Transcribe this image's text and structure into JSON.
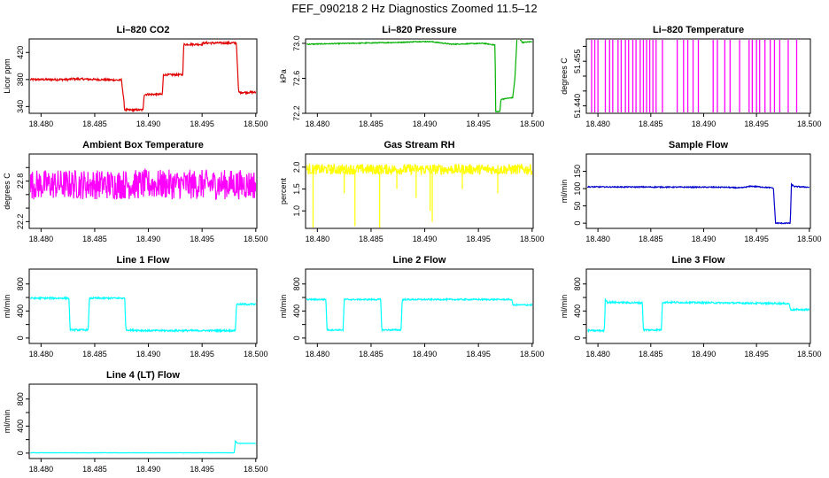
{
  "page_title": "FEF_090218  2 Hz Diagnostics Zoomed 11.5–12",
  "colors": {
    "red": "#e00000",
    "green": "#00b000",
    "magenta": "#ff00ff",
    "yellow": "#ffff00",
    "blue": "#0000cc",
    "cyan": "#00ffff"
  },
  "chart_data": [
    {
      "type": "line",
      "title": "Li–820 CO2",
      "ylabel": "Licor ppm",
      "xlabel": "",
      "xlim": [
        18.4789,
        18.5001
      ],
      "ylim": [
        330,
        440
      ],
      "xticks": [
        18.48,
        18.485,
        18.49,
        18.495,
        18.5
      ],
      "xticklabels": [
        "18.480",
        "18.485",
        "18.490",
        "18.495",
        "18.500"
      ],
      "yticks": [
        340,
        380,
        420
      ],
      "yticklabels": [
        "340",
        "380",
        "420"
      ],
      "color": "#e00000",
      "noise": 1.5,
      "series": [
        {
          "x": [
            18.479,
            18.4825,
            18.483,
            18.4875,
            18.4878,
            18.4895,
            18.4896,
            18.4913,
            18.4914,
            18.4932,
            18.4933,
            18.495,
            18.4951,
            18.4982,
            18.4984,
            18.5
          ],
          "values": [
            380,
            380,
            381,
            379,
            335,
            335,
            358,
            358,
            387,
            387,
            432,
            432,
            434,
            434,
            361,
            361
          ]
        }
      ]
    },
    {
      "type": "line",
      "title": "Li–820 Pressure",
      "ylabel": "kPa",
      "xlabel": "",
      "xlim": [
        18.4789,
        18.5001
      ],
      "ylim": [
        72.2,
        73.05
      ],
      "xticks": [
        18.48,
        18.485,
        18.49,
        18.495,
        18.5
      ],
      "xticklabels": [
        "18.480",
        "18.485",
        "18.490",
        "18.495",
        "18.500"
      ],
      "yticks": [
        72.2,
        72.6,
        73.0
      ],
      "yticklabels": [
        "72.2",
        "72.6",
        "73.0"
      ],
      "color": "#00b000",
      "noise": 0.005,
      "series": [
        {
          "x": [
            18.479,
            18.483,
            18.4875,
            18.4895,
            18.4905,
            18.4925,
            18.4955,
            18.49655,
            18.4966,
            18.497,
            18.4971,
            18.4982,
            18.4984,
            18.4986,
            18.4991,
            18.5
          ],
          "values": [
            72.99,
            73.0,
            73.01,
            73.02,
            73.02,
            72.99,
            73.0,
            72.98,
            72.22,
            72.22,
            72.36,
            72.38,
            72.6,
            73.09,
            73.01,
            73.02
          ]
        }
      ]
    },
    {
      "type": "line",
      "title": "Li–820 Temperature",
      "ylabel": "degrees C",
      "xlabel": "",
      "xlim": [
        18.4789,
        18.5001
      ],
      "ylim": [
        51.4375,
        51.4625
      ],
      "xticks": [
        18.48,
        18.485,
        18.49,
        18.495,
        18.5
      ],
      "xticklabels": [
        "18.480",
        "18.485",
        "18.490",
        "18.495",
        "18.500"
      ],
      "yticks": [
        51.44,
        51.445,
        51.45,
        51.455,
        51.46
      ],
      "yticklabels": [
        "51.440",
        "",
        "",
        "51.455",
        ""
      ],
      "color": "#ff00ff",
      "style": "spikes",
      "base": 51.4375,
      "top": 51.4625,
      "spikes_x": [
        18.4794,
        18.4797,
        18.48,
        18.4807,
        18.4811,
        18.4814,
        18.4819,
        18.4822,
        18.4826,
        18.4829,
        18.4833,
        18.4836,
        18.484,
        18.4843,
        18.4846,
        18.4849,
        18.4852,
        18.4855,
        18.4861,
        18.4875,
        18.4881,
        18.4885,
        18.489,
        18.4895,
        18.4909,
        18.4913,
        18.492,
        18.4925,
        18.4934,
        18.4943,
        18.4946,
        18.495,
        18.4953,
        18.4958,
        18.4963,
        18.4967,
        18.4972,
        18.498,
        18.4988
      ]
    },
    {
      "type": "line",
      "title": "Ambient Box Temperature",
      "ylabel": "degrees C",
      "xlabel": "",
      "xlim": [
        18.4789,
        18.5001
      ],
      "ylim": [
        22.1,
        23.2
      ],
      "xticks": [
        18.48,
        18.485,
        18.49,
        18.495,
        18.5
      ],
      "xticklabels": [
        "18.480",
        "18.485",
        "18.490",
        "18.495",
        "18.500"
      ],
      "yticks": [
        22.2,
        22.4,
        22.6,
        22.8,
        23.0
      ],
      "yticklabels": [
        "22.2",
        "",
        "",
        "22.8",
        ""
      ],
      "color": "#ff00ff",
      "noise": 0.22,
      "series": [
        {
          "x": [
            18.479,
            18.5
          ],
          "values": [
            22.75,
            22.75
          ]
        }
      ]
    },
    {
      "type": "line",
      "title": "Gas Stream RH",
      "ylabel": "percent",
      "xlabel": "",
      "xlim": [
        18.4789,
        18.5001
      ],
      "ylim": [
        0.6,
        2.3
      ],
      "xticks": [
        18.48,
        18.485,
        18.49,
        18.495,
        18.5
      ],
      "xticklabels": [
        "18.480",
        "18.485",
        "18.490",
        "18.495",
        "18.500"
      ],
      "yticks": [
        1.0,
        1.5,
        2.0
      ],
      "yticklabels": [
        "1.0",
        "1.5",
        "2.0"
      ],
      "color": "#ffff00",
      "noise": 0.12,
      "series": [
        {
          "x": [
            18.479,
            18.5
          ],
          "values": [
            1.95,
            1.95
          ]
        }
      ],
      "dips": [
        [
          18.4796,
          0.62
        ],
        [
          18.4835,
          0.65
        ],
        [
          18.4858,
          0.62
        ],
        [
          18.4907,
          0.75
        ],
        [
          18.4905,
          1.0
        ],
        [
          18.4892,
          1.3
        ],
        [
          18.4825,
          1.4
        ],
        [
          18.4874,
          1.5
        ],
        [
          18.4935,
          1.5
        ],
        [
          18.4968,
          1.4
        ]
      ]
    },
    {
      "type": "line",
      "title": "Sample Flow",
      "ylabel": "ml/min",
      "xlabel": "",
      "xlim": [
        18.4789,
        18.5001
      ],
      "ylim": [
        -15,
        200
      ],
      "xticks": [
        18.48,
        18.485,
        18.49,
        18.495,
        18.5
      ],
      "xticklabels": [
        "18.480",
        "18.485",
        "18.490",
        "18.495",
        "18.500"
      ],
      "yticks": [
        0,
        50,
        100,
        150
      ],
      "yticklabels": [
        "0",
        "50",
        "100",
        "150"
      ],
      "color": "#0000cc",
      "noise": 1.5,
      "series": [
        {
          "x": [
            18.479,
            18.492,
            18.4935,
            18.4945,
            18.4966,
            18.4968,
            18.4982,
            18.4983,
            18.4986,
            18.5
          ],
          "values": [
            105,
            104,
            102,
            107,
            102,
            0,
            0,
            112,
            106,
            104
          ]
        }
      ]
    },
    {
      "type": "line",
      "title": "Line 1 Flow",
      "ylabel": "ml/min",
      "xlabel": "",
      "xlim": [
        18.4789,
        18.5001
      ],
      "ylim": [
        -80,
        1020
      ],
      "xticks": [
        18.48,
        18.485,
        18.49,
        18.495,
        18.5
      ],
      "xticklabels": [
        "18.480",
        "18.485",
        "18.490",
        "18.495",
        "18.500"
      ],
      "yticks": [
        0,
        200,
        400,
        600,
        800
      ],
      "yticklabels": [
        "0",
        "",
        "400",
        "",
        "800"
      ],
      "color": "#00ffff",
      "noise": 12,
      "series": [
        {
          "x": [
            18.479,
            18.4826,
            18.4827,
            18.4844,
            18.4845,
            18.4878,
            18.4879,
            18.4898,
            18.4981,
            18.4982,
            18.5
          ],
          "values": [
            590,
            590,
            120,
            120,
            590,
            590,
            120,
            110,
            110,
            500,
            500
          ]
        }
      ]
    },
    {
      "type": "line",
      "title": "Line 2 Flow",
      "ylabel": "ml/min",
      "xlabel": "",
      "xlim": [
        18.4789,
        18.5001
      ],
      "ylim": [
        -80,
        1020
      ],
      "xticks": [
        18.48,
        18.485,
        18.49,
        18.495,
        18.5
      ],
      "xticklabels": [
        "18.480",
        "18.485",
        "18.490",
        "18.495",
        "18.500"
      ],
      "yticks": [
        0,
        200,
        400,
        600,
        800
      ],
      "yticklabels": [
        "0",
        "",
        "400",
        "",
        "800"
      ],
      "color": "#00ffff",
      "noise": 10,
      "series": [
        {
          "x": [
            18.479,
            18.4808,
            18.4809,
            18.4824,
            18.4825,
            18.4859,
            18.486,
            18.4878,
            18.4879,
            18.4981,
            18.4982,
            18.5
          ],
          "values": [
            570,
            570,
            120,
            120,
            570,
            570,
            120,
            120,
            570,
            570,
            490,
            490
          ]
        }
      ]
    },
    {
      "type": "line",
      "title": "Line 3 Flow",
      "ylabel": "ml/min",
      "xlabel": "",
      "xlim": [
        18.4789,
        18.5001
      ],
      "ylim": [
        -80,
        1020
      ],
      "xticks": [
        18.48,
        18.485,
        18.49,
        18.495,
        18.5
      ],
      "xticklabels": [
        "18.480",
        "18.485",
        "18.490",
        "18.495",
        "18.500"
      ],
      "yticks": [
        0,
        200,
        400,
        600,
        800
      ],
      "yticklabels": [
        "0",
        "",
        "400",
        "",
        "800"
      ],
      "color": "#00ffff",
      "noise": 12,
      "series": [
        {
          "x": [
            18.479,
            18.4806,
            18.4807,
            18.4809,
            18.4842,
            18.4843,
            18.486,
            18.4861,
            18.4981,
            18.4982,
            18.5
          ],
          "values": [
            110,
            110,
            580,
            530,
            520,
            120,
            120,
            530,
            510,
            420,
            420
          ]
        }
      ]
    },
    {
      "type": "line",
      "title": "Line 4 (LT) Flow",
      "ylabel": "ml/min",
      "xlabel": "",
      "xlim": [
        18.4789,
        18.5001
      ],
      "ylim": [
        -80,
        1020
      ],
      "xticks": [
        18.48,
        18.485,
        18.49,
        18.495,
        18.5
      ],
      "xticklabels": [
        "18.480",
        "18.485",
        "18.490",
        "18.495",
        "18.500"
      ],
      "yticks": [
        0,
        200,
        400,
        600,
        800
      ],
      "yticklabels": [
        "0",
        "",
        "400",
        "",
        "800"
      ],
      "color": "#00ffff",
      "noise": 2,
      "series": [
        {
          "x": [
            18.479,
            18.498,
            18.4981,
            18.4983,
            18.5
          ],
          "values": [
            5,
            5,
            180,
            145,
            145
          ]
        }
      ]
    }
  ]
}
